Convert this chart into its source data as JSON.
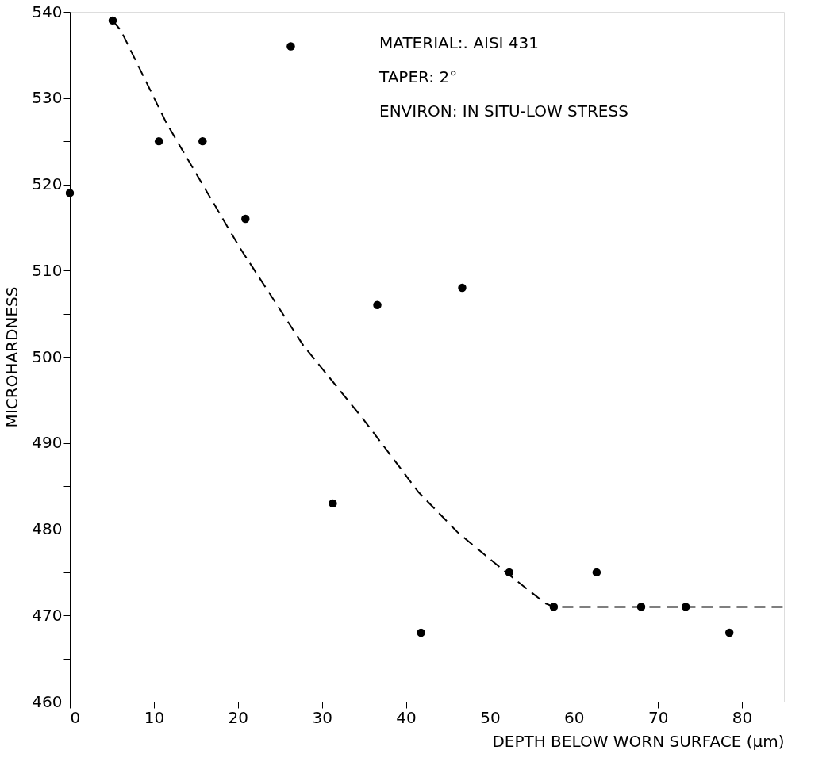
{
  "chart_data": {
    "type": "scatter",
    "xlabel": "DEPTH BELOW WORN SURFACE  (μm)",
    "ylabel": "MICROHARDNESS",
    "annotations": [
      "MATERIAL:. AISI 431",
      "TAPER: 2°",
      "ENVIRON: IN SITU-LOW STRESS"
    ],
    "xlim": [
      0,
      85
    ],
    "ylim": [
      460,
      540
    ],
    "xticks": [
      0,
      10,
      20,
      30,
      40,
      50,
      60,
      70,
      80
    ],
    "yticks": [
      460,
      {
        "value": 465,
        "label": null
      },
      470,
      {
        "value": 475,
        "label": null
      },
      480,
      {
        "value": 485,
        "label": null
      },
      490,
      {
        "value": 495,
        "label": null
      },
      500,
      {
        "value": 505,
        "label": null
      },
      510,
      {
        "value": 515,
        "label": null
      },
      520,
      {
        "value": 525,
        "label": null
      },
      530,
      {
        "value": 535,
        "label": null
      },
      540
    ],
    "grid": false,
    "marker": "circle",
    "series": [
      {
        "color": "#000000",
        "x": [
          0,
          5.1,
          10.6,
          15.8,
          20.9,
          26.3,
          31.3,
          36.6,
          41.8,
          46.7,
          52.3,
          57.6,
          62.7,
          68,
          73.3,
          78.5
        ],
        "values": [
          519,
          539,
          525,
          525,
          516,
          536,
          483,
          506,
          468,
          508,
          475,
          471,
          475,
          471,
          471,
          468
        ]
      },
      {
        "type": "line",
        "color": "#000000",
        "line_style": "dashed",
        "marker": "none",
        "x": [
          5.1,
          6.1,
          11.5,
          20.2,
          27.8,
          34.9,
          38.4,
          41.5,
          46.2,
          52.3,
          56.6,
          57.6,
          85
        ],
        "values": [
          539,
          537.8,
          527.1,
          512.7,
          501.3,
          492.8,
          488.3,
          484.3,
          479.6,
          474.7,
          471.4,
          471,
          471
        ]
      }
    ]
  }
}
